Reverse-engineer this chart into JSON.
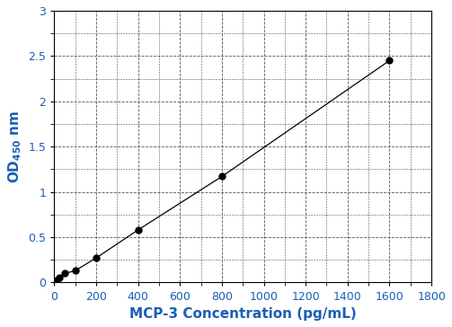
{
  "x": [
    0,
    12.5,
    25,
    50,
    100,
    200,
    400,
    800,
    1600
  ],
  "y": [
    0.0,
    0.02,
    0.05,
    0.1,
    0.13,
    0.27,
    0.58,
    1.17,
    2.45
  ],
  "xlabel": "MCP-3 Concentration (pg/mL)",
  "xlim": [
    0,
    1800
  ],
  "ylim": [
    0,
    3
  ],
  "xticks": [
    0,
    200,
    400,
    600,
    800,
    1000,
    1200,
    1400,
    1600,
    1800
  ],
  "yticks": [
    0,
    0.5,
    1.0,
    1.5,
    2.0,
    2.5,
    3.0
  ],
  "line_color": "#000000",
  "marker_color": "#000000",
  "grid_color": "#555555",
  "tick_label_color": "#1a5fb4",
  "axis_label_color": "#1a5fb4",
  "background_color": "#ffffff",
  "marker_size": 5,
  "line_width": 0.9,
  "xlabel_fontsize": 11,
  "ylabel_main_fontsize": 11,
  "ylabel_sub_fontsize": 8,
  "tick_fontsize": 9
}
